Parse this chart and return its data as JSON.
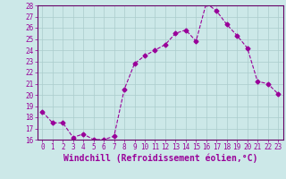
{
  "x": [
    0,
    1,
    2,
    3,
    4,
    5,
    6,
    7,
    8,
    9,
    10,
    11,
    12,
    13,
    14,
    15,
    16,
    17,
    18,
    19,
    20,
    21,
    22,
    23
  ],
  "y": [
    18.5,
    17.5,
    17.5,
    16.2,
    16.5,
    16.0,
    16.0,
    16.3,
    20.5,
    22.8,
    23.5,
    24.0,
    24.5,
    25.5,
    25.8,
    24.8,
    28.2,
    27.5,
    26.3,
    25.3,
    24.2,
    21.2,
    21.0,
    20.1
  ],
  "line_color": "#990099",
  "marker": "D",
  "marker_size": 2.5,
  "background_color": "#cce8e8",
  "grid_color": "#aacccc",
  "xlabel": "Windchill (Refroidissement éolien,°C)",
  "xlabel_fontsize": 7,
  "ylim_min": 16,
  "ylim_max": 28,
  "yticks": [
    16,
    17,
    18,
    19,
    20,
    21,
    22,
    23,
    24,
    25,
    26,
    27,
    28
  ],
  "xticks": [
    0,
    1,
    2,
    3,
    4,
    5,
    6,
    7,
    8,
    9,
    10,
    11,
    12,
    13,
    14,
    15,
    16,
    17,
    18,
    19,
    20,
    21,
    22,
    23
  ],
  "tick_fontsize": 5.5,
  "tick_color": "#990099",
  "axis_color": "#990099",
  "spine_color": "#660066"
}
